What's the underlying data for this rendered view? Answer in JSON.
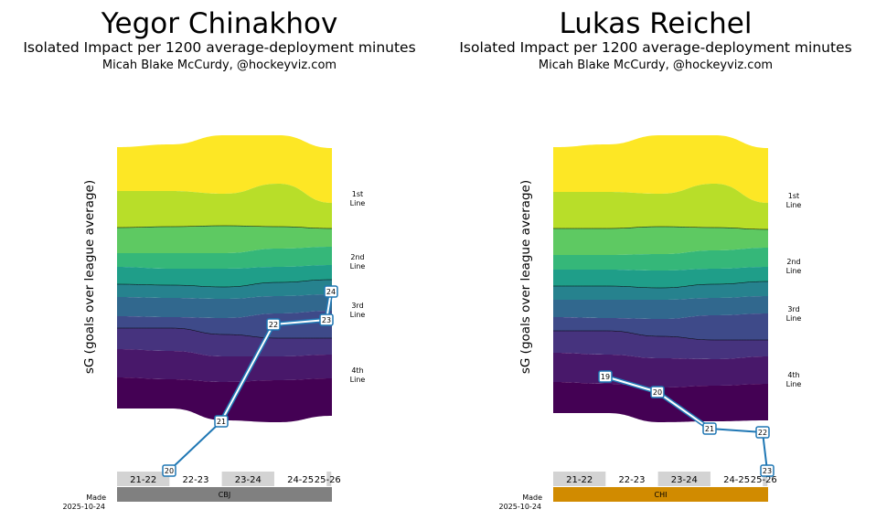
{
  "chart_data": [
    {
      "type": "area",
      "title": "Yegor Chinakhov",
      "subtitle": "Isolated Impact per 1200 average-deployment minutes",
      "credit": "Micah Blake McCurdy, @hockeyviz.com",
      "ylabel": "sG (goals over league average)",
      "line_labels": [
        [
          "1st",
          "Line"
        ],
        [
          "2nd",
          "Line"
        ],
        [
          "3rd",
          "Line"
        ],
        [
          "4th",
          "Line"
        ]
      ],
      "seasons": [
        "21-22",
        "22-23",
        "23-24",
        "24-25",
        "25-26"
      ],
      "team": "CBJ",
      "team_color": "#808080",
      "made_label": "Made",
      "made_date": "2025-10-24",
      "points": [
        {
          "age": "20"
        },
        {
          "age": "21"
        },
        {
          "age": "22"
        },
        {
          "age": "23"
        },
        {
          "age": "24"
        }
      ]
    },
    {
      "type": "area",
      "title": "Lukas Reichel",
      "subtitle": "Isolated Impact per 1200 average-deployment minutes",
      "credit": "Micah Blake McCurdy, @hockeyviz.com",
      "ylabel": "sG (goals over league average)",
      "line_labels": [
        [
          "1st",
          "Line"
        ],
        [
          "2nd",
          "Line"
        ],
        [
          "3rd",
          "Line"
        ],
        [
          "4th",
          "Line"
        ]
      ],
      "seasons": [
        "21-22",
        "22-23",
        "23-24",
        "24-25",
        "25-26"
      ],
      "team": "CHI",
      "team_color": "#d18b00",
      "made_label": "Made",
      "made_date": "2025-10-24",
      "points": [
        {
          "age": "19"
        },
        {
          "age": "20"
        },
        {
          "age": "21"
        },
        {
          "age": "22"
        },
        {
          "age": "23"
        }
      ]
    }
  ],
  "colors": {
    "bands": [
      "#fde725",
      "#b8de29",
      "#5ec962",
      "#35b779",
      "#1f9e89",
      "#26828e",
      "#31688e",
      "#3e4a89",
      "#46337e",
      "#48186a",
      "#440154"
    ],
    "line": "#1f77b4",
    "season_shade": "#d3d3d3"
  }
}
